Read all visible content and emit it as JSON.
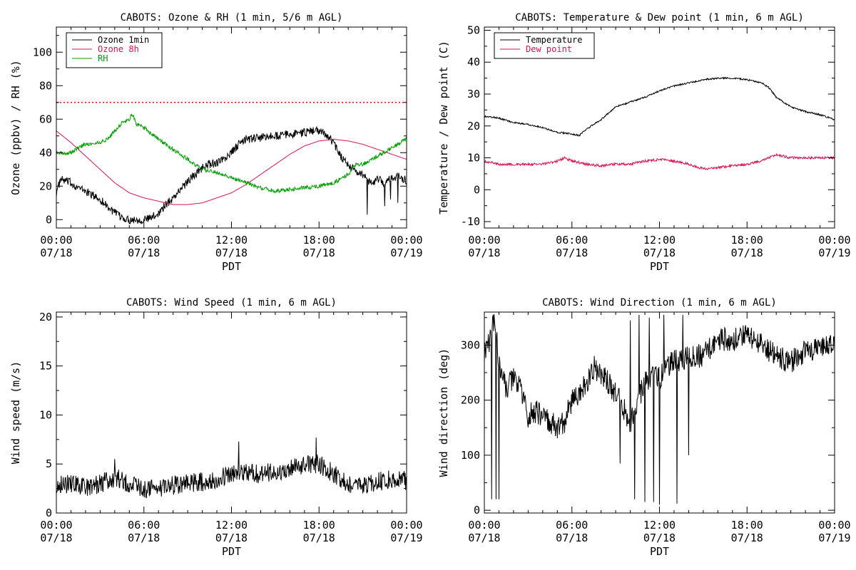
{
  "chart_data": [
    {
      "id": "p1",
      "type": "line",
      "title": "CABOTS: Ozone & RH (1 min, 5/6 m AGL)",
      "xlabel": "PDT",
      "ylabel": "Ozone (ppbv) / RH (%)",
      "x_unit": "hours since 07/18 00:00 PDT",
      "xlim": [
        0,
        24
      ],
      "ylim": [
        -5,
        115
      ],
      "x_ticks": [
        {
          "v": 0,
          "l1": "00:00",
          "l2": "07/18"
        },
        {
          "v": 6,
          "l1": "06:00",
          "l2": "07/18"
        },
        {
          "v": 12,
          "l1": "12:00",
          "l2": "07/18"
        },
        {
          "v": 18,
          "l1": "18:00",
          "l2": "07/18"
        },
        {
          "v": 24,
          "l1": "00:00",
          "l2": "07/19"
        }
      ],
      "y_ticks": [
        0,
        20,
        40,
        60,
        80,
        100
      ],
      "legend": "top-left",
      "ref_line": {
        "y": 70,
        "color": "#ff0000",
        "style": "dotted"
      },
      "series": [
        {
          "name": "Ozone 1min",
          "color": "#000000",
          "noise": 2.5,
          "spikes": [
            [
              21.3,
              3
            ],
            [
              22.5,
              8
            ],
            [
              22.9,
              12
            ],
            [
              23.4,
              10
            ]
          ],
          "x": [
            0,
            0.3,
            1,
            1.5,
            2,
            3,
            3.5,
            4,
            4.5,
            5,
            5.5,
            6,
            6.5,
            7,
            7.5,
            8,
            8.5,
            9,
            9.5,
            10,
            10.5,
            11,
            11.5,
            12,
            12.5,
            13,
            14,
            15,
            16,
            17,
            17.5,
            18,
            18.5,
            19,
            19.5,
            20,
            20.5,
            21,
            21.5,
            22,
            22.5,
            23,
            23.5,
            24
          ],
          "y": [
            16,
            24,
            22,
            19,
            17,
            12,
            8,
            4,
            1,
            0,
            0,
            0,
            1,
            4,
            9,
            13,
            18,
            23,
            27,
            31,
            33,
            34,
            36,
            40,
            45,
            48,
            49,
            50,
            51,
            52,
            53,
            53,
            51,
            46,
            38,
            33,
            29,
            27,
            22,
            24,
            22,
            25,
            26,
            23
          ]
        },
        {
          "name": "Ozone 8h",
          "color": "#e0104f",
          "noise": 0,
          "spikes": [],
          "x": [
            0,
            1,
            2,
            3,
            4,
            5,
            6,
            7,
            8,
            9,
            10,
            11,
            12,
            13,
            14,
            15,
            16,
            17,
            18,
            19,
            20,
            21,
            22,
            23,
            24
          ],
          "y": [
            53,
            46,
            38,
            30,
            22,
            16,
            13,
            11,
            9,
            9,
            10,
            13,
            16,
            21,
            27,
            33,
            39,
            44,
            47,
            48,
            47,
            45,
            42,
            39,
            36
          ]
        },
        {
          "name": "RH",
          "color": "#00a000",
          "noise": 1.2,
          "spikes": [],
          "x": [
            0,
            0.5,
            1,
            1.5,
            2,
            3,
            3.5,
            4,
            4.5,
            5,
            5.2,
            5.5,
            6,
            7,
            8,
            9,
            10,
            11,
            12,
            13,
            14,
            15,
            16,
            17,
            18,
            19,
            20,
            20.5,
            21,
            22,
            23,
            24
          ],
          "y": [
            40,
            39,
            40,
            43,
            45,
            46,
            48,
            53,
            58,
            60,
            63,
            57,
            55,
            48,
            42,
            36,
            30,
            28,
            25,
            22,
            19,
            17,
            18,
            19,
            20,
            22,
            27,
            33,
            33,
            38,
            43,
            48
          ]
        }
      ]
    },
    {
      "id": "p2",
      "type": "line",
      "title": "CABOTS: Temperature & Dew point (1 min, 6 m AGL)",
      "xlabel": "PDT",
      "ylabel": "Temperature / Dew point (C)",
      "x_unit": "hours since 07/18 00:00 PDT",
      "xlim": [
        0,
        24
      ],
      "ylim": [
        -12,
        51
      ],
      "x_ticks": [
        {
          "v": 0,
          "l1": "00:00",
          "l2": "07/18"
        },
        {
          "v": 6,
          "l1": "06:00",
          "l2": "07/18"
        },
        {
          "v": 12,
          "l1": "12:00",
          "l2": "07/18"
        },
        {
          "v": 18,
          "l1": "18:00",
          "l2": "07/18"
        },
        {
          "v": 24,
          "l1": "00:00",
          "l2": "07/19"
        }
      ],
      "y_ticks": [
        -10,
        0,
        10,
        20,
        30,
        40,
        50
      ],
      "legend": "top-left",
      "series": [
        {
          "name": "Temperature",
          "color": "#000000",
          "noise": 0.25,
          "spikes": [],
          "x": [
            0,
            1,
            2,
            3,
            4,
            5,
            6,
            6.5,
            7,
            8,
            8.5,
            9,
            10,
            11,
            12,
            13,
            14,
            15,
            16,
            17,
            18,
            19,
            19.5,
            20,
            21,
            22,
            23,
            24
          ],
          "y": [
            23,
            22.5,
            21,
            20.5,
            19.5,
            18,
            17.5,
            17,
            19,
            22,
            24,
            26,
            27.5,
            29,
            31,
            32.5,
            33.5,
            34.5,
            35,
            35,
            34.5,
            33.5,
            32,
            29,
            26,
            24.5,
            23.5,
            22
          ]
        },
        {
          "name": "Dew point",
          "color": "#e0104f",
          "noise": 0.4,
          "spikes": [],
          "x": [
            0,
            1,
            2,
            3,
            4,
            5,
            5.5,
            6,
            7,
            8,
            9,
            10,
            11,
            12,
            13,
            14,
            15,
            16,
            17,
            18,
            19,
            20,
            21,
            22,
            23,
            24
          ],
          "y": [
            9,
            8,
            8,
            8,
            8,
            9,
            10,
            9,
            8,
            7.5,
            8,
            8,
            9,
            9.5,
            9,
            8,
            6.5,
            7,
            7.5,
            8,
            9,
            11,
            10,
            10,
            10,
            10
          ]
        }
      ]
    },
    {
      "id": "p3",
      "type": "line",
      "title": "CABOTS: Wind Speed (1 min, 6 m AGL)",
      "xlabel": "PDT",
      "ylabel": "Wind speed (m/s)",
      "x_unit": "hours since 07/18 00:00 PDT",
      "xlim": [
        0,
        24
      ],
      "ylim": [
        0,
        20.5
      ],
      "x_ticks": [
        {
          "v": 0,
          "l1": "00:00",
          "l2": "07/18"
        },
        {
          "v": 6,
          "l1": "06:00",
          "l2": "07/18"
        },
        {
          "v": 12,
          "l1": "12:00",
          "l2": "07/18"
        },
        {
          "v": 18,
          "l1": "18:00",
          "l2": "07/18"
        },
        {
          "v": 24,
          "l1": "00:00",
          "l2": "07/19"
        }
      ],
      "y_ticks": [
        0,
        5,
        10,
        15,
        20
      ],
      "legend": "none",
      "series": [
        {
          "color": "#000000",
          "noise": 1.0,
          "spikes": [
            [
              4,
              5.5
            ],
            [
              17.8,
              7.7
            ],
            [
              12.5,
              7.3
            ]
          ],
          "x": [
            0,
            1,
            2,
            3,
            4,
            5,
            6,
            7,
            8,
            9,
            10,
            11,
            12,
            13,
            14,
            15,
            16,
            17,
            18,
            19,
            20,
            21,
            22,
            23,
            24
          ],
          "y": [
            3,
            3,
            2.6,
            3,
            3.6,
            3,
            2.5,
            2.5,
            2.8,
            3,
            3.2,
            3.5,
            4,
            4.2,
            4,
            4.2,
            4.5,
            5,
            5,
            4,
            3,
            2.8,
            3.2,
            3.5,
            3.3
          ]
        }
      ]
    },
    {
      "id": "p4",
      "type": "line",
      "title": "CABOTS: Wind Direction (1 min, 6 m AGL)",
      "xlabel": "PDT",
      "ylabel": "Wind direction (deg)",
      "x_unit": "hours since 07/18 00:00 PDT",
      "xlim": [
        0,
        24
      ],
      "ylim": [
        -5,
        360
      ],
      "x_ticks": [
        {
          "v": 0,
          "l1": "00:00",
          "l2": "07/18"
        },
        {
          "v": 6,
          "l1": "06:00",
          "l2": "07/18"
        },
        {
          "v": 12,
          "l1": "12:00",
          "l2": "07/18"
        },
        {
          "v": 18,
          "l1": "18:00",
          "l2": "07/18"
        },
        {
          "v": 24,
          "l1": "00:00",
          "l2": "07/19"
        }
      ],
      "y_ticks": [
        0,
        100,
        200,
        300
      ],
      "legend": "none",
      "series": [
        {
          "color": "#000000",
          "noise": 22,
          "spikes": [
            [
              0.5,
              20
            ],
            [
              0.8,
              20
            ],
            [
              1.0,
              20
            ],
            [
              10.3,
              20
            ],
            [
              10.6,
              355
            ],
            [
              11.0,
              15
            ],
            [
              11.3,
              350
            ],
            [
              11.6,
              15
            ],
            [
              12.0,
              10
            ],
            [
              12.3,
              355
            ],
            [
              13.2,
              12
            ],
            [
              13.6,
              355
            ],
            [
              14.0,
              100
            ],
            [
              10.0,
              345
            ],
            [
              9.3,
              85
            ]
          ],
          "x": [
            0,
            0.3,
            0.5,
            0.8,
            1,
            1.5,
            2,
            2.5,
            3,
            3.5,
            4,
            4.5,
            5,
            5.5,
            6,
            6.5,
            7,
            7.5,
            8,
            8.5,
            9,
            9.5,
            10,
            10.5,
            11,
            11.5,
            12,
            12.5,
            13,
            14,
            15,
            16,
            17,
            18,
            19,
            19.5,
            20,
            21,
            22,
            23,
            24
          ],
          "y": [
            290,
            300,
            330,
            340,
            260,
            220,
            240,
            220,
            170,
            180,
            170,
            160,
            150,
            160,
            200,
            210,
            230,
            260,
            250,
            230,
            210,
            190,
            160,
            200,
            230,
            250,
            240,
            260,
            270,
            280,
            280,
            310,
            310,
            320,
            300,
            290,
            280,
            270,
            290,
            300,
            295
          ]
        }
      ]
    }
  ]
}
